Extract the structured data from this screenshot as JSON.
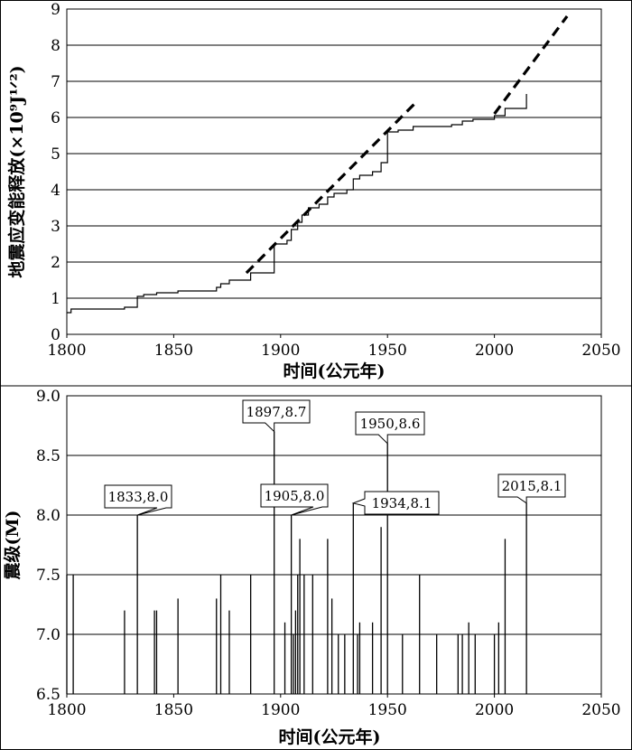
{
  "chart_data": [
    {
      "type": "line",
      "ylabel": "地震应变能释放(×10⁹J¹ᐟ²)",
      "xlabel": "时间(公元年)",
      "xlim": [
        1800,
        2050
      ],
      "ylim": [
        0,
        9
      ],
      "x_ticks": [
        "1800",
        "1850",
        "1900",
        "1950",
        "2000",
        "2050"
      ],
      "y_ticks": [
        "0",
        "1",
        "2",
        "3",
        "4",
        "5",
        "6",
        "7",
        "8",
        "9"
      ],
      "grid": "horizontal",
      "series": [
        {
          "style": "step",
          "points": [
            [
              1800,
              0.6
            ],
            [
              1802,
              0.6
            ],
            [
              1802,
              0.7
            ],
            [
              1827,
              0.7
            ],
            [
              1827,
              0.75
            ],
            [
              1833,
              0.75
            ],
            [
              1833,
              1.05
            ],
            [
              1836,
              1.05
            ],
            [
              1836,
              1.1
            ],
            [
              1842,
              1.1
            ],
            [
              1842,
              1.15
            ],
            [
              1852,
              1.15
            ],
            [
              1852,
              1.2
            ],
            [
              1870,
              1.2
            ],
            [
              1870,
              1.3
            ],
            [
              1872,
              1.3
            ],
            [
              1872,
              1.4
            ],
            [
              1876,
              1.4
            ],
            [
              1876,
              1.5
            ],
            [
              1886,
              1.5
            ],
            [
              1886,
              1.7
            ],
            [
              1897,
              1.7
            ],
            [
              1897,
              2.5
            ],
            [
              1903,
              2.5
            ],
            [
              1903,
              2.6
            ],
            [
              1905,
              2.6
            ],
            [
              1905,
              2.9
            ],
            [
              1908,
              2.9
            ],
            [
              1908,
              3.1
            ],
            [
              1910,
              3.1
            ],
            [
              1910,
              3.3
            ],
            [
              1913,
              3.3
            ],
            [
              1913,
              3.5
            ],
            [
              1918,
              3.5
            ],
            [
              1918,
              3.6
            ],
            [
              1922,
              3.6
            ],
            [
              1922,
              3.8
            ],
            [
              1925,
              3.8
            ],
            [
              1925,
              3.9
            ],
            [
              1931,
              3.9
            ],
            [
              1931,
              4.0
            ],
            [
              1934,
              4.0
            ],
            [
              1934,
              4.3
            ],
            [
              1937,
              4.3
            ],
            [
              1937,
              4.4
            ],
            [
              1943,
              4.4
            ],
            [
              1943,
              4.5
            ],
            [
              1947,
              4.5
            ],
            [
              1947,
              4.75
            ],
            [
              1950,
              4.75
            ],
            [
              1950,
              5.6
            ],
            [
              1955,
              5.6
            ],
            [
              1955,
              5.65
            ],
            [
              1962,
              5.65
            ],
            [
              1962,
              5.75
            ],
            [
              1980,
              5.75
            ],
            [
              1980,
              5.8
            ],
            [
              1985,
              5.8
            ],
            [
              1985,
              5.9
            ],
            [
              1990,
              5.9
            ],
            [
              1990,
              5.95
            ],
            [
              2000,
              5.95
            ],
            [
              2000,
              6.05
            ],
            [
              2005,
              6.05
            ],
            [
              2005,
              6.25
            ],
            [
              2015,
              6.25
            ],
            [
              2015,
              6.65
            ]
          ]
        },
        {
          "style": "dashed-trend",
          "points": [
            [
              1884,
              1.7
            ],
            [
              1963,
              6.4
            ]
          ]
        },
        {
          "style": "dashed-trend",
          "points": [
            [
              2000,
              6.1
            ],
            [
              2034,
              8.8
            ]
          ]
        }
      ]
    },
    {
      "type": "bar",
      "ylabel": "震级(M)",
      "xlabel": "时间(公元年)",
      "xlim": [
        1800,
        2050
      ],
      "ylim": [
        6.5,
        9.0
      ],
      "x_ticks": [
        "1800",
        "1850",
        "1900",
        "1950",
        "2000",
        "2050"
      ],
      "y_ticks": [
        "6.5",
        "7.0",
        "7.5",
        "8.0",
        "8.5",
        "9.0"
      ],
      "grid": "horizontal",
      "events": [
        [
          1800,
          7.5
        ],
        [
          1803,
          7.5
        ],
        [
          1827,
          7.2
        ],
        [
          1833,
          8.0
        ],
        [
          1841,
          7.2
        ],
        [
          1842,
          7.2
        ],
        [
          1852,
          7.3
        ],
        [
          1870,
          7.3
        ],
        [
          1872,
          7.5
        ],
        [
          1876,
          7.2
        ],
        [
          1886,
          7.5
        ],
        [
          1897,
          8.7
        ],
        [
          1902,
          7.1
        ],
        [
          1905,
          8.0
        ],
        [
          1906,
          7.0
        ],
        [
          1907,
          7.2
        ],
        [
          1908,
          7.5
        ],
        [
          1909,
          7.8
        ],
        [
          1911,
          7.5
        ],
        [
          1915,
          7.5
        ],
        [
          1922,
          7.8
        ],
        [
          1924,
          7.3
        ],
        [
          1927,
          7.0
        ],
        [
          1930,
          7.0
        ],
        [
          1934,
          8.1
        ],
        [
          1936,
          7.0
        ],
        [
          1937,
          7.1
        ],
        [
          1943,
          7.1
        ],
        [
          1947,
          7.9
        ],
        [
          1950,
          8.6
        ],
        [
          1957,
          7.0
        ],
        [
          1965,
          7.5
        ],
        [
          1973,
          7.0
        ],
        [
          1983,
          7.0
        ],
        [
          1985,
          7.0
        ],
        [
          1988,
          7.1
        ],
        [
          1991,
          7.0
        ],
        [
          2000,
          7.0
        ],
        [
          2002,
          7.1
        ],
        [
          2005,
          7.8
        ],
        [
          2015,
          8.1
        ]
      ],
      "annotations": [
        {
          "text": "1833,8.0",
          "x": 1833,
          "y": 8.0
        },
        {
          "text": "1897,8.7",
          "x": 1897,
          "y": 8.7
        },
        {
          "text": "1905,8.0",
          "x": 1905,
          "y": 8.0
        },
        {
          "text": "1934,8.1",
          "x": 1934,
          "y": 8.1
        },
        {
          "text": "1950,8.6",
          "x": 1950,
          "y": 8.6
        },
        {
          "text": "2015,8.1",
          "x": 2015,
          "y": 8.1
        }
      ]
    }
  ]
}
